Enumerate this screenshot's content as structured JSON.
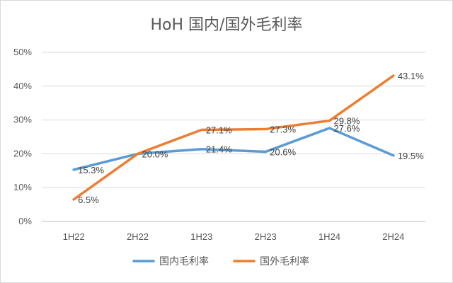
{
  "chart_data": {
    "type": "line",
    "title": "HoH 国内/国外毛利率",
    "categories": [
      "1H22",
      "2H22",
      "1H23",
      "2H23",
      "1H24",
      "2H24"
    ],
    "y_ticks": [
      "0%",
      "10%",
      "20%",
      "30%",
      "40%",
      "50%"
    ],
    "ylim": [
      0,
      50
    ],
    "grid": true,
    "legend_position": "bottom",
    "series": [
      {
        "name": "国内毛利率",
        "color": "#5B9BD5",
        "values": [
          15.3,
          20.0,
          21.4,
          20.6,
          27.6,
          19.5
        ],
        "labels": [
          "15.3%",
          "20.0%",
          "21.4%",
          "20.6%",
          "27.6%",
          "19.5%"
        ]
      },
      {
        "name": "国外毛利率",
        "color": "#ED7D31",
        "values": [
          6.5,
          20.0,
          27.1,
          27.3,
          29.8,
          43.1
        ],
        "labels": [
          "6.5%",
          "",
          "27.1%",
          "27.3%",
          "29.8%",
          "43.1%"
        ]
      }
    ]
  }
}
